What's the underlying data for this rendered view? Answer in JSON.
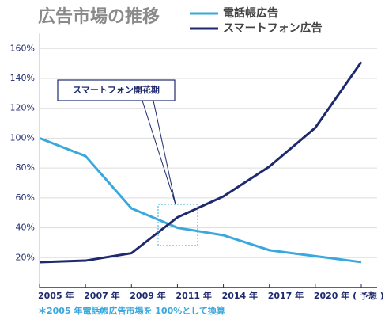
{
  "chart_data": {
    "type": "line",
    "title": "広告市場の推移",
    "categories": [
      "2005 年",
      "2007 年",
      "2009 年",
      "2011 年",
      "2014 年",
      "2017 年",
      "2020 年 ( 予想 )",
      null
    ],
    "series": [
      {
        "name": "電話帳広告",
        "color": "#3aa8dc",
        "values": [
          100,
          88,
          53,
          40,
          35,
          25,
          21,
          17
        ]
      },
      {
        "name": "スマートフォン広告",
        "color": "#1f2a6e",
        "values": [
          17,
          18,
          23,
          47,
          61,
          81,
          107,
          151
        ]
      }
    ],
    "ylim": [
      0,
      170
    ],
    "yticks": [
      {
        "value": 20,
        "label": "20%"
      },
      {
        "value": 40,
        "label": "40%"
      },
      {
        "value": 60,
        "label": "60%"
      },
      {
        "value": 80,
        "label": "80%"
      },
      {
        "value": 100,
        "label": "100%"
      },
      {
        "value": 120,
        "label": "120%"
      },
      {
        "value": 140,
        "label": "140%"
      },
      {
        "value": 160,
        "label": "160%"
      }
    ],
    "grid": true,
    "annotation": "スマートフォン開花期",
    "footnote": "＊2005 年電話帳広告市場を 100%として換算"
  }
}
